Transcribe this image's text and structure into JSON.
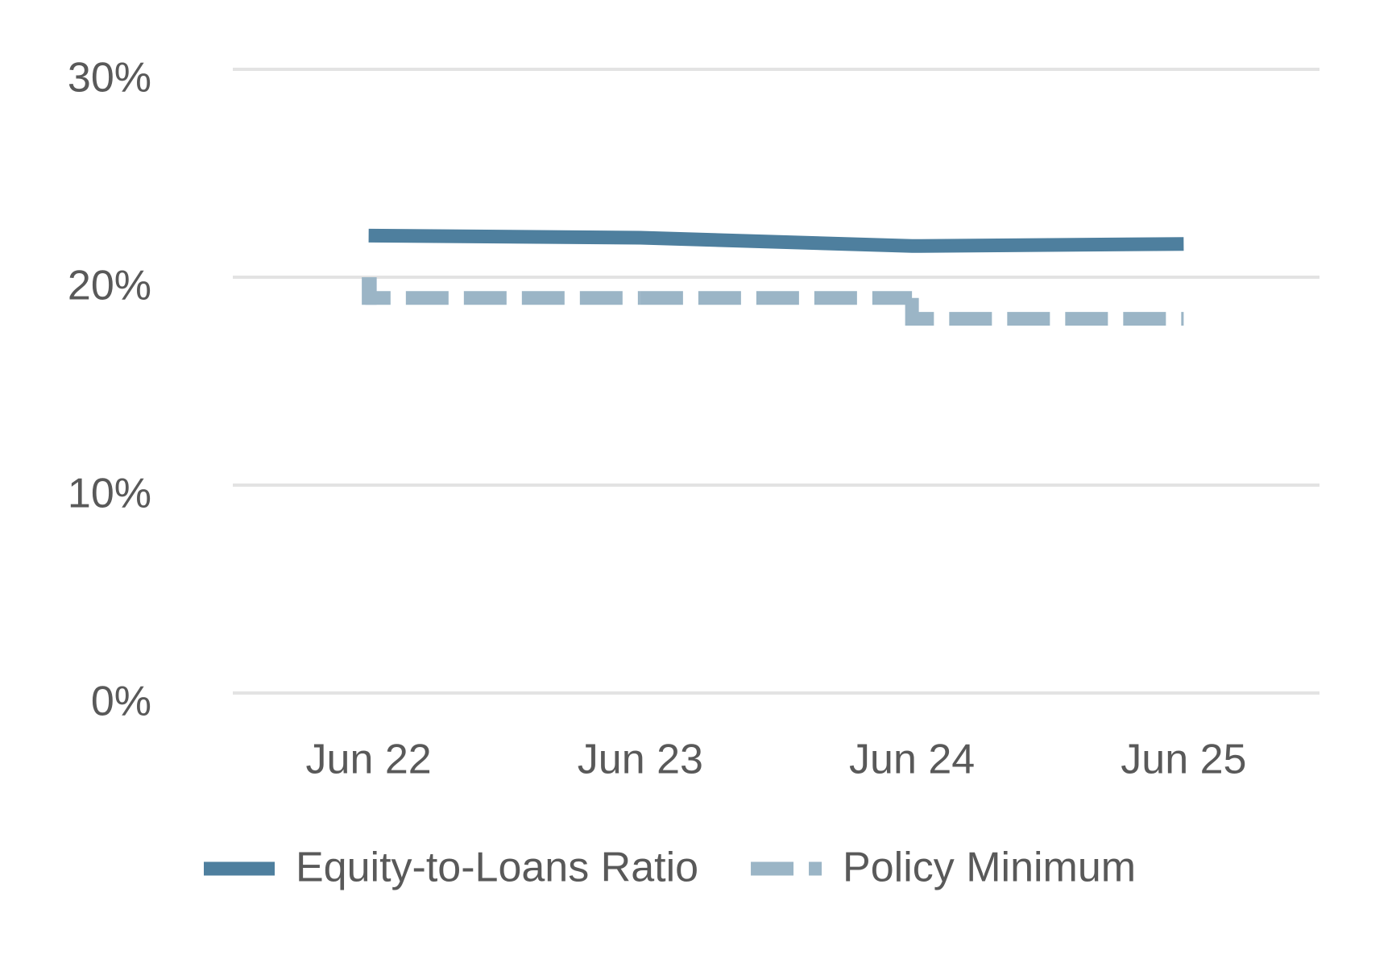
{
  "chart_data": {
    "type": "line",
    "categories": [
      "Jun 22",
      "Jun 23",
      "Jun 24",
      "Jun 25"
    ],
    "series": [
      {
        "name": "Equity-to-Loans Ratio",
        "color": "#4e7f9e",
        "values": [
          22.0,
          21.9,
          21.5,
          21.6
        ]
      },
      {
        "name": "Policy Minimum",
        "color": "#9bb5c6",
        "values": [
          20,
          19,
          19,
          18
        ],
        "dashed": true,
        "step": "pre"
      }
    ],
    "ylim": [
      0,
      30
    ],
    "yticks": [
      {
        "value": 0,
        "label": "0%"
      },
      {
        "value": 10,
        "label": "10%"
      },
      {
        "value": 20,
        "label": "20%"
      },
      {
        "value": 30,
        "label": "30%"
      }
    ],
    "grid": true,
    "legend": "bottom"
  }
}
